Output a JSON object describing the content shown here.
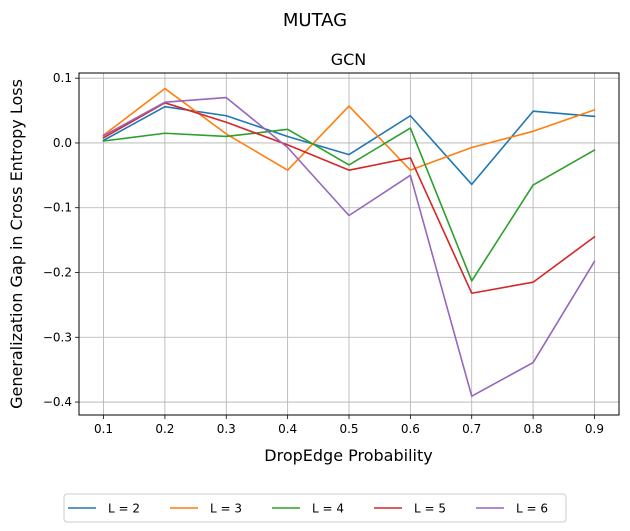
{
  "figure": {
    "suptitle": "MUTAG"
  },
  "chart_data": {
    "type": "line",
    "title": "GCN",
    "xlabel": "DropEdge Probability",
    "ylabel": "Generalization Gap in Cross Entropy Loss",
    "x": [
      0.1,
      0.2,
      0.3,
      0.4,
      0.5,
      0.6,
      0.7,
      0.8,
      0.9
    ],
    "x_ticks": [
      "0.1",
      "0.2",
      "0.3",
      "0.4",
      "0.5",
      "0.6",
      "0.7",
      "0.8",
      "0.9"
    ],
    "y_ticks": [
      "0.1",
      "0.0",
      "−0.1",
      "−0.2",
      "−0.3",
      "−0.4"
    ],
    "y_tick_values": [
      0.1,
      0.0,
      -0.1,
      -0.2,
      -0.3,
      -0.4
    ],
    "xlim": [
      0.06,
      0.94
    ],
    "ylim": [
      -0.42,
      0.108
    ],
    "grid": true,
    "legend_position": "below",
    "series": [
      {
        "name": "L = 2",
        "color": "#1f77b4",
        "values": [
          0.004,
          0.056,
          0.042,
          0.01,
          -0.018,
          0.042,
          -0.064,
          0.049,
          0.041
        ]
      },
      {
        "name": "L = 3",
        "color": "#ff7f0e",
        "values": [
          0.012,
          0.084,
          0.014,
          -0.042,
          0.057,
          -0.042,
          -0.007,
          0.018,
          0.051
        ]
      },
      {
        "name": "L = 4",
        "color": "#2ca02c",
        "values": [
          0.003,
          0.015,
          0.01,
          0.021,
          -0.034,
          0.023,
          -0.213,
          -0.065,
          -0.011
        ]
      },
      {
        "name": "L = 5",
        "color": "#d62728",
        "values": [
          0.008,
          0.062,
          0.032,
          -0.003,
          -0.042,
          -0.023,
          -0.232,
          -0.215,
          -0.145
        ]
      },
      {
        "name": "L = 6",
        "color": "#9467bd",
        "values": [
          0.011,
          0.063,
          0.07,
          -0.007,
          -0.112,
          -0.05,
          -0.391,
          -0.339,
          -0.183
        ]
      }
    ]
  }
}
